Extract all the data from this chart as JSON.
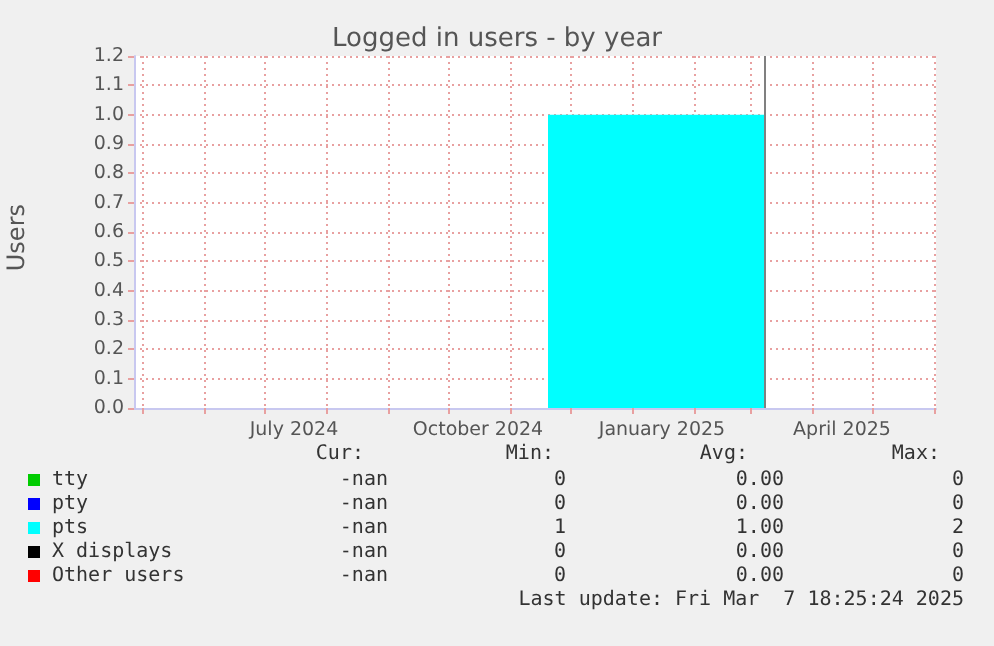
{
  "chart_data": {
    "type": "area",
    "title": "Logged in users - by year",
    "ylabel": "Users",
    "legend": "bottom",
    "grid": true,
    "xlim": [
      "2024-04-27",
      "2025-06-02"
    ],
    "xticks": [
      {
        "value": "2024-05-01",
        "label": null
      },
      {
        "value": "2024-06-01",
        "label": null
      },
      {
        "value": "2024-07-01",
        "label": null
      },
      {
        "value": "2024-07-16",
        "label": "July 2024"
      },
      {
        "value": "2024-08-01",
        "label": null
      },
      {
        "value": "2024-09-01",
        "label": null
      },
      {
        "value": "2024-10-01",
        "label": null
      },
      {
        "value": "2024-10-16",
        "label": "October 2024"
      },
      {
        "value": "2024-11-01",
        "label": null
      },
      {
        "value": "2024-12-01",
        "label": null
      },
      {
        "value": "2025-01-01",
        "label": null
      },
      {
        "value": "2025-01-16",
        "label": "January 2025"
      },
      {
        "value": "2025-02-01",
        "label": null
      },
      {
        "value": "2025-03-01",
        "label": null
      },
      {
        "value": "2025-04-01",
        "label": null
      },
      {
        "value": "2025-04-16",
        "label": "April 2025"
      },
      {
        "value": "2025-05-01",
        "label": null
      },
      {
        "value": "2025-06-01",
        "label": null
      }
    ],
    "ylim": [
      0,
      1.2
    ],
    "yticks": [
      {
        "value": 0,
        "label": "0.0"
      },
      0.1,
      0.2,
      0.3,
      0.4,
      0.5,
      0.6,
      0.7,
      0.8,
      0.9,
      {
        "value": 1,
        "label": "1.0"
      },
      1.1,
      1.2
    ],
    "x": [
      "2024-11-20",
      "2025-03-08"
    ],
    "series": [
      {
        "name": "tty",
        "color": "#00cc00",
        "values": [
          null,
          null
        ]
      },
      {
        "name": "pty",
        "color": "#0000ff",
        "values": [
          null,
          null
        ]
      },
      {
        "name": "pts",
        "color": "#00ffff",
        "values": [
          1,
          1
        ]
      },
      {
        "name": "X displays",
        "color": "#000000",
        "values": [
          null,
          null
        ]
      },
      {
        "name": "Other users",
        "color": "#ff0000",
        "values": [
          null,
          null
        ]
      }
    ],
    "ref_lines": [
      {
        "axis": "x",
        "value": "2025-03-07T18:25",
        "color": "#808080"
      }
    ],
    "annotations": [
      "Cur:",
      "Min:",
      "Avg:",
      "Max:",
      "-nan",
      "0",
      "0.00",
      "0",
      "-nan",
      "0",
      "0.00",
      "0",
      "-nan",
      "1",
      "1.00",
      "2",
      "-nan",
      "0",
      "0.00",
      "0",
      "-nan",
      "0",
      "0.00",
      "0",
      "Last update: Fri Mar  7 18:25:24 2025"
    ]
  }
}
